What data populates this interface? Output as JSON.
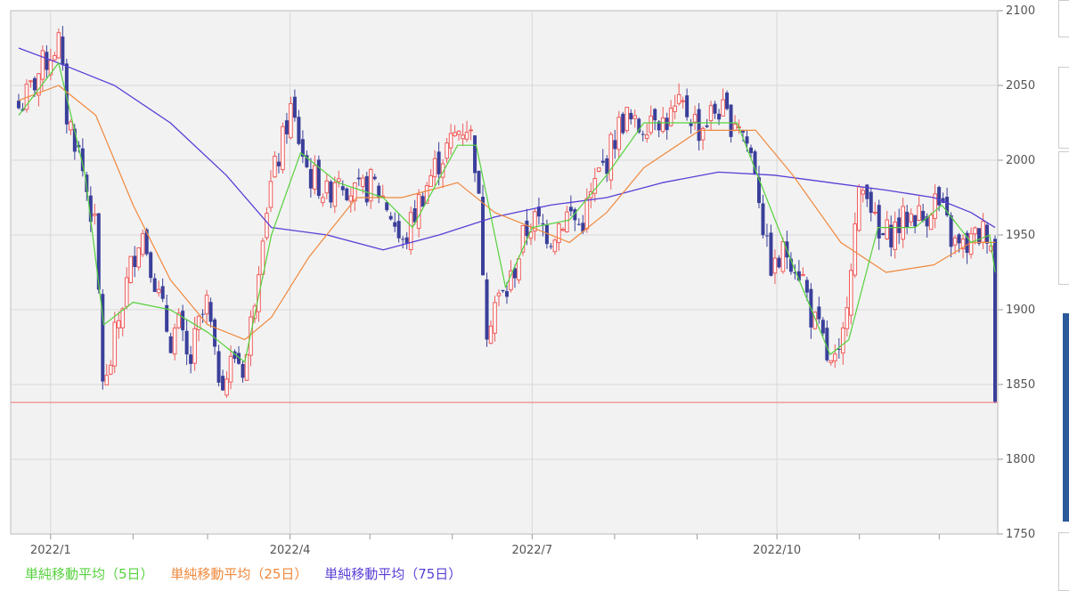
{
  "chart_data": {
    "type": "candlestick",
    "title": "",
    "xlabel": "",
    "ylabel": "",
    "ylim": [
      1750,
      2100
    ],
    "yticks": [
      1750,
      1800,
      1850,
      1900,
      1950,
      2000,
      2050,
      2100
    ],
    "xticks": [
      "2022/1",
      "2022/4",
      "2022/7",
      "2022/10"
    ],
    "grid": true,
    "reference_line": 1838,
    "colors": {
      "up": "#f05a5a",
      "down": "#3a3f9a",
      "ma5": "#56d13c",
      "ma25": "#f0883c",
      "ma75": "#5a3dd6",
      "reference": "#f08a8a",
      "plot_bg": "#f2f2f2",
      "grid": "#d8d8d8"
    },
    "legend": [
      {
        "label": "単純移動平均（5日）",
        "color": "#56d13c"
      },
      {
        "label": "単純移動平均（25日）",
        "color": "#f0883c"
      },
      {
        "label": "単純移動平均（75日）",
        "color": "#5a3dd6"
      }
    ],
    "close_path": [
      [
        "2021/12/20",
        2035
      ],
      [
        "2021/12/24",
        2045
      ],
      [
        "2021/12/28",
        2060
      ],
      [
        "2022/1/4",
        2080
      ],
      [
        "2022/1/7",
        2030
      ],
      [
        "2022/1/11",
        2010
      ],
      [
        "2022/1/14",
        1985
      ],
      [
        "2022/1/18",
        1950
      ],
      [
        "2022/1/21",
        1840
      ],
      [
        "2022/1/25",
        1880
      ],
      [
        "2022/1/28",
        1905
      ],
      [
        "2022/2/1",
        1935
      ],
      [
        "2022/2/4",
        1955
      ],
      [
        "2022/2/8",
        1930
      ],
      [
        "2022/2/11",
        1905
      ],
      [
        "2022/2/15",
        1880
      ],
      [
        "2022/2/18",
        1890
      ],
      [
        "2022/2/22",
        1860
      ],
      [
        "2022/2/25",
        1885
      ],
      [
        "2022/3/1",
        1905
      ],
      [
        "2022/3/4",
        1860
      ],
      [
        "2022/3/8",
        1855
      ],
      [
        "2022/3/11",
        1870
      ],
      [
        "2022/3/15",
        1860
      ],
      [
        "2022/3/18",
        1900
      ],
      [
        "2022/3/22",
        1960
      ],
      [
        "2022/3/25",
        1985
      ],
      [
        "2022/3/29",
        2010
      ],
      [
        "2022/4/1",
        2035
      ],
      [
        "2022/4/5",
        2010
      ],
      [
        "2022/4/8",
        1990
      ],
      [
        "2022/4/12",
        1985
      ],
      [
        "2022/4/15",
        1975
      ],
      [
        "2022/4/19",
        1995
      ],
      [
        "2022/4/22",
        1985
      ],
      [
        "2022/4/26",
        1975
      ],
      [
        "2022/5/2",
        1985
      ],
      [
        "2022/5/6",
        1975
      ],
      [
        "2022/5/10",
        1960
      ],
      [
        "2022/5/13",
        1940
      ],
      [
        "2022/5/17",
        1960
      ],
      [
        "2022/5/20",
        1975
      ],
      [
        "2022/5/24",
        1990
      ],
      [
        "2022/5/27",
        2000
      ],
      [
        "2022/5/31",
        2010
      ],
      [
        "2022/6/3",
        2020
      ],
      [
        "2022/6/7",
        2025
      ],
      [
        "2022/6/10",
        1995
      ],
      [
        "2022/6/14",
        1890
      ],
      [
        "2022/6/17",
        1905
      ],
      [
        "2022/6/21",
        1910
      ],
      [
        "2022/6/24",
        1925
      ],
      [
        "2022/6/28",
        1950
      ],
      [
        "2022/7/1",
        1960
      ],
      [
        "2022/7/5",
        1955
      ],
      [
        "2022/7/8",
        1950
      ],
      [
        "2022/7/12",
        1960
      ],
      [
        "2022/7/15",
        1965
      ],
      [
        "2022/7/19",
        1955
      ],
      [
        "2022/7/22",
        1970
      ],
      [
        "2022/7/26",
        1990
      ],
      [
        "2022/7/29",
        2000
      ],
      [
        "2022/8/2",
        2020
      ],
      [
        "2022/8/5",
        2030
      ],
      [
        "2022/8/9",
        2020
      ],
      [
        "2022/8/12",
        2025
      ],
      [
        "2022/8/16",
        2035
      ],
      [
        "2022/8/19",
        2025
      ],
      [
        "2022/8/23",
        2030
      ],
      [
        "2022/8/26",
        2035
      ],
      [
        "2022/8/30",
        2030
      ],
      [
        "2022/9/2",
        2020
      ],
      [
        "2022/9/6",
        2030
      ],
      [
        "2022/9/9",
        2035
      ],
      [
        "2022/9/13",
        2025
      ],
      [
        "2022/9/16",
        2030
      ],
      [
        "2022/9/20",
        2010
      ],
      [
        "2022/9/23",
        1995
      ],
      [
        "2022/9/27",
        1940
      ],
      [
        "2022/9/30",
        1925
      ],
      [
        "2022/10/4",
        1940
      ],
      [
        "2022/10/7",
        1935
      ],
      [
        "2022/10/11",
        1920
      ],
      [
        "2022/10/14",
        1895
      ],
      [
        "2022/10/18",
        1880
      ],
      [
        "2022/10/21",
        1860
      ],
      [
        "2022/10/25",
        1865
      ],
      [
        "2022/10/28",
        1925
      ],
      [
        "2022/11/1",
        1975
      ],
      [
        "2022/11/4",
        1985
      ],
      [
        "2022/11/8",
        1945
      ],
      [
        "2022/11/11",
        1950
      ],
      [
        "2022/11/15",
        1955
      ],
      [
        "2022/11/18",
        1960
      ],
      [
        "2022/11/22",
        1965
      ],
      [
        "2022/11/25",
        1960
      ],
      [
        "2022/11/29",
        1975
      ],
      [
        "2022/12/2",
        1965
      ],
      [
        "2022/12/6",
        1945
      ],
      [
        "2022/12/9",
        1940
      ],
      [
        "2022/12/13",
        1945
      ],
      [
        "2022/12/16",
        1950
      ],
      [
        "2022/12/20",
        1955
      ],
      [
        "2022/12/21",
        1940
      ],
      [
        "2022/12/22",
        1838
      ]
    ],
    "ma5": [
      [
        "2021/12/20",
        2030
      ],
      [
        "2022/1/4",
        2065
      ],
      [
        "2022/1/14",
        1990
      ],
      [
        "2022/1/21",
        1890
      ],
      [
        "2022/2/1",
        1905
      ],
      [
        "2022/2/15",
        1900
      ],
      [
        "2022/3/1",
        1885
      ],
      [
        "2022/3/15",
        1865
      ],
      [
        "2022/3/25",
        1950
      ],
      [
        "2022/4/5",
        2005
      ],
      [
        "2022/4/19",
        1985
      ],
      [
        "2022/5/6",
        1975
      ],
      [
        "2022/5/17",
        1955
      ],
      [
        "2022/6/3",
        2010
      ],
      [
        "2022/6/10",
        2010
      ],
      [
        "2022/6/21",
        1915
      ],
      [
        "2022/7/1",
        1955
      ],
      [
        "2022/7/15",
        1960
      ],
      [
        "2022/7/29",
        1990
      ],
      [
        "2022/8/12",
        2025
      ],
      [
        "2022/9/2",
        2025
      ],
      [
        "2022/9/16",
        2025
      ],
      [
        "2022/9/27",
        1975
      ],
      [
        "2022/10/7",
        1930
      ],
      [
        "2022/10/21",
        1870
      ],
      [
        "2022/10/28",
        1880
      ],
      [
        "2022/11/8",
        1955
      ],
      [
        "2022/11/22",
        1955
      ],
      [
        "2022/12/2",
        1970
      ],
      [
        "2022/12/13",
        1945
      ],
      [
        "2022/12/20",
        1950
      ],
      [
        "2022/12/22",
        1925
      ]
    ],
    "ma25": [
      [
        "2021/12/20",
        2040
      ],
      [
        "2022/1/4",
        2050
      ],
      [
        "2022/1/18",
        2030
      ],
      [
        "2022/2/1",
        1970
      ],
      [
        "2022/2/15",
        1920
      ],
      [
        "2022/3/1",
        1890
      ],
      [
        "2022/3/15",
        1880
      ],
      [
        "2022/3/25",
        1895
      ],
      [
        "2022/4/8",
        1935
      ],
      [
        "2022/4/26",
        1975
      ],
      [
        "2022/5/13",
        1975
      ],
      [
        "2022/6/3",
        1985
      ],
      [
        "2022/6/17",
        1965
      ],
      [
        "2022/7/1",
        1955
      ],
      [
        "2022/7/15",
        1945
      ],
      [
        "2022/7/29",
        1965
      ],
      [
        "2022/8/12",
        1995
      ],
      [
        "2022/9/2",
        2020
      ],
      [
        "2022/9/23",
        2020
      ],
      [
        "2022/10/7",
        1990
      ],
      [
        "2022/10/25",
        1945
      ],
      [
        "2022/11/11",
        1925
      ],
      [
        "2022/11/29",
        1930
      ],
      [
        "2022/12/13",
        1945
      ],
      [
        "2022/12/22",
        1945
      ]
    ],
    "ma75": [
      [
        "2021/12/20",
        2075
      ],
      [
        "2022/1/4",
        2065
      ],
      [
        "2022/1/25",
        2050
      ],
      [
        "2022/2/15",
        2025
      ],
      [
        "2022/3/8",
        1990
      ],
      [
        "2022/3/25",
        1955
      ],
      [
        "2022/4/15",
        1950
      ],
      [
        "2022/5/6",
        1940
      ],
      [
        "2022/5/27",
        1950
      ],
      [
        "2022/6/17",
        1962
      ],
      [
        "2022/7/8",
        1970
      ],
      [
        "2022/7/29",
        1975
      ],
      [
        "2022/8/19",
        1985
      ],
      [
        "2022/9/9",
        1992
      ],
      [
        "2022/9/30",
        1990
      ],
      [
        "2022/10/21",
        1985
      ],
      [
        "2022/11/11",
        1980
      ],
      [
        "2022/11/29",
        1975
      ],
      [
        "2022/12/13",
        1965
      ],
      [
        "2022/12/22",
        1955
      ]
    ]
  }
}
